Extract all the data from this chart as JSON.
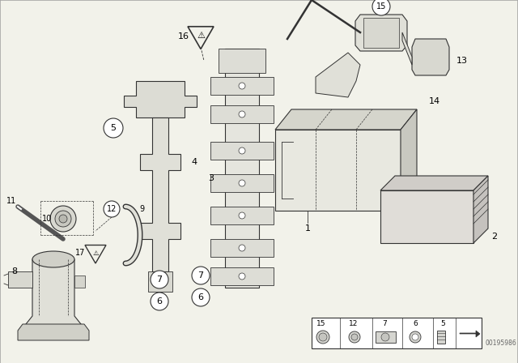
{
  "bg_color": "#f2f2ea",
  "line_color": "#333333",
  "image_number": "00195986",
  "legend_items": [
    "15",
    "12",
    "7",
    "6",
    "5"
  ]
}
